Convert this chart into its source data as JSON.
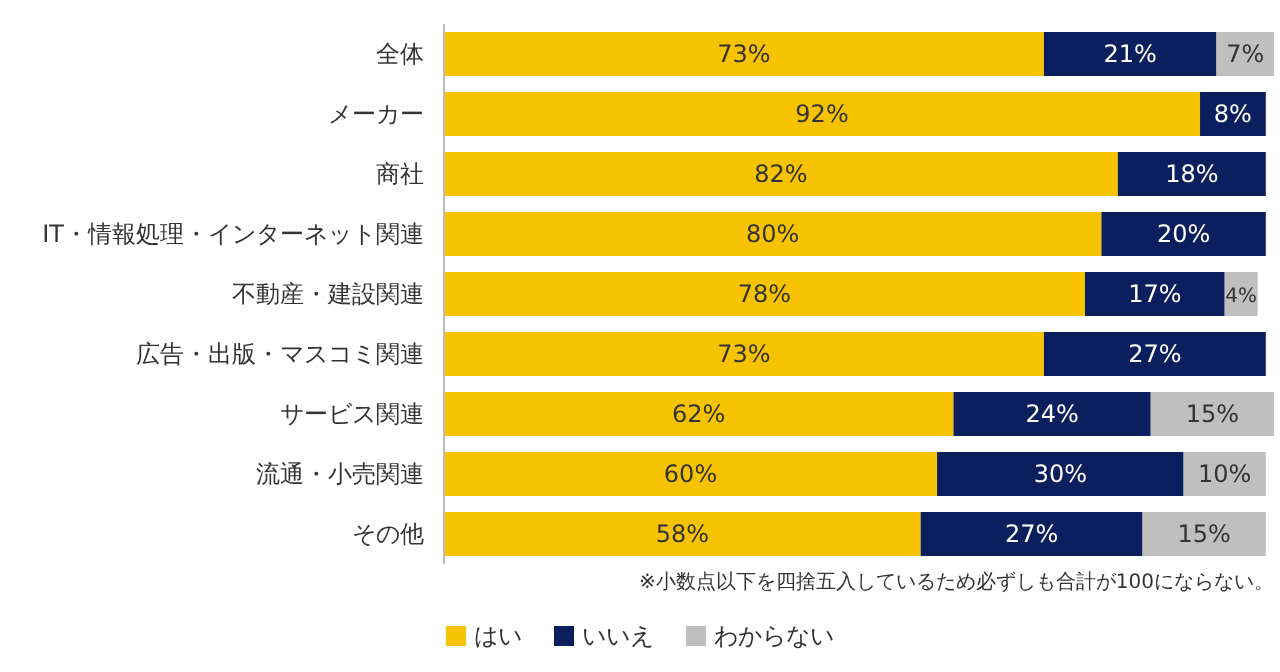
{
  "chart_data": {
    "type": "bar",
    "orientation": "horizontal",
    "stacked": true,
    "legend": "bottom",
    "categories": [
      "全体",
      "メーカー",
      "商社",
      "IT・情報処理・インターネット関連",
      "不動産・建設関連",
      "広告・出版・マスコミ関連",
      "サービス関連",
      "流通・小売関連",
      "その他"
    ],
    "series": [
      {
        "name": "はい",
        "color": "#f7c300",
        "values": [
          73,
          92,
          82,
          80,
          78,
          73,
          62,
          60,
          58
        ],
        "value_labels": [
          "73%",
          "92%",
          "82%",
          "80%",
          "78%",
          "73%",
          "62%",
          "60%",
          "58%"
        ]
      },
      {
        "name": "いいえ",
        "color": "#0b1f5e",
        "values": [
          21,
          8,
          18,
          20,
          17,
          27,
          24,
          30,
          27
        ],
        "value_labels": [
          "21%",
          "8%",
          "18%",
          "20%",
          "17%",
          "27%",
          "24%",
          "30%",
          "27%"
        ]
      },
      {
        "name": "わからない",
        "color": "#bfbfbf",
        "values": [
          7,
          null,
          null,
          null,
          4,
          null,
          15,
          10,
          15
        ],
        "value_labels": [
          "7%",
          null,
          null,
          null,
          "4%",
          null,
          "15%",
          "10%",
          "15%"
        ]
      }
    ],
    "annotations": [
      "※小数点以下を四捨五入しているため必ずしも合計が100にならない。"
    ]
  }
}
